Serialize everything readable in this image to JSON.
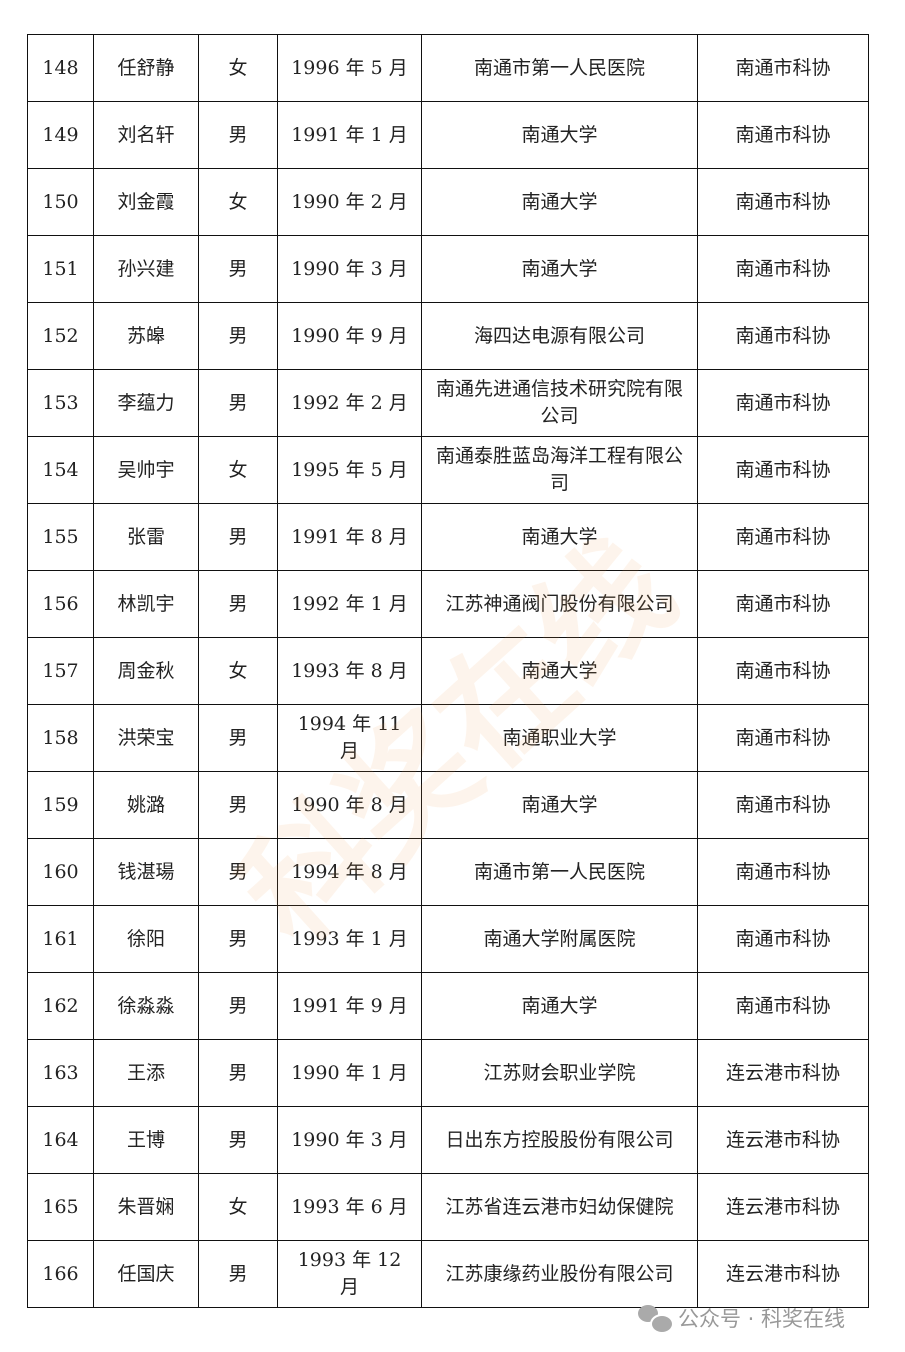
{
  "rows": [
    [
      "148",
      "任舒静",
      "女",
      "1996 年 5 月",
      "南通市第一人民医院",
      "南通市科协"
    ],
    [
      "149",
      "刘名轩",
      "男",
      "1991 年 1 月",
      "南通大学",
      "南通市科协"
    ],
    [
      "150",
      "刘金霞",
      "女",
      "1990 年 2 月",
      "南通大学",
      "南通市科协"
    ],
    [
      "151",
      "孙兴建",
      "男",
      "1990 年 3 月",
      "南通大学",
      "南通市科协"
    ],
    [
      "152",
      "苏皞",
      "男",
      "1990 年 9 月",
      "海四达电源有限公司",
      "南通市科协"
    ],
    [
      "153",
      "李蕴力",
      "男",
      "1992 年 2 月",
      "南通先进通信技术研究院有限公司",
      "南通市科协"
    ],
    [
      "154",
      "吴帅宇",
      "女",
      "1995 年 5 月",
      "南通泰胜蓝岛海洋工程有限公司",
      "南通市科协"
    ],
    [
      "155",
      "张雷",
      "男",
      "1991 年 8 月",
      "南通大学",
      "南通市科协"
    ],
    [
      "156",
      "林凯宇",
      "男",
      "1992 年 1 月",
      "江苏神通阀门股份有限公司",
      "南通市科协"
    ],
    [
      "157",
      "周金秋",
      "女",
      "1993 年 8 月",
      "南通大学",
      "南通市科协"
    ],
    [
      "158",
      "洪荣宝",
      "男",
      "1994 年 11 月",
      "南通职业大学",
      "南通市科协"
    ],
    [
      "159",
      "姚潞",
      "男",
      "1990 年 8 月",
      "南通大学",
      "南通市科协"
    ],
    [
      "160",
      "钱湛瑒",
      "男",
      "1994 年 8 月",
      "南通市第一人民医院",
      "南通市科协"
    ],
    [
      "161",
      "徐阳",
      "男",
      "1993 年 1 月",
      "南通大学附属医院",
      "南通市科协"
    ],
    [
      "162",
      "徐淼淼",
      "男",
      "1991 年 9 月",
      "南通大学",
      "南通市科协"
    ],
    [
      "163",
      "王添",
      "男",
      "1990 年 1 月",
      "江苏财会职业学院",
      "连云港市科协"
    ],
    [
      "164",
      "王博",
      "男",
      "1990 年 3 月",
      "日出东方控股股份有限公司",
      "连云港市科协"
    ],
    [
      "165",
      "朱晋娴",
      "女",
      "1993 年 6 月",
      "江苏省连云港市妇幼保健院",
      "连云港市科协"
    ],
    [
      "166",
      "任国庆",
      "男",
      "1993 年 12 月",
      "江苏康缘药业股份有限公司",
      "连云港市科协"
    ]
  ],
  "watermark": "科奖在线",
  "footer": {
    "icon": "wechat-icon",
    "text": "公众号 · 科奖在线"
  }
}
